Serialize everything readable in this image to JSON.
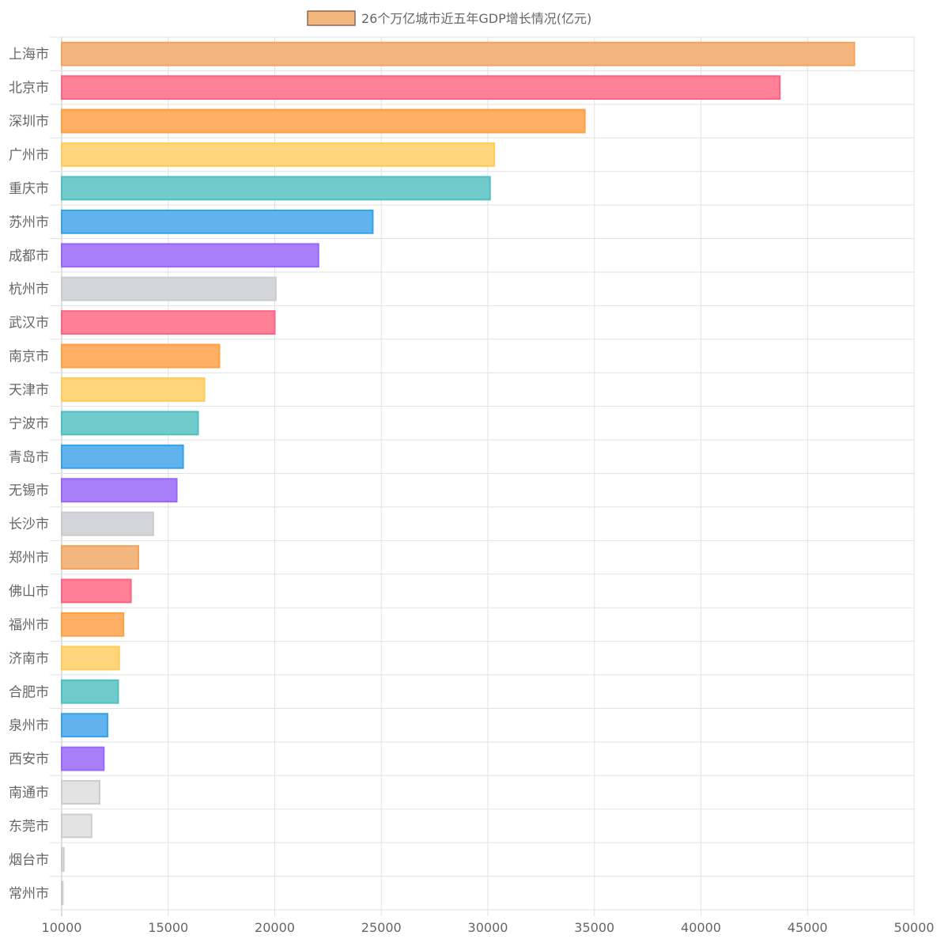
{
  "chart_data": {
    "type": "bar",
    "orientation": "horizontal",
    "legend": {
      "label": "26个万亿城市近五年GDP增长情况(亿元)",
      "position": "top-center",
      "color": "#f4b67f",
      "border_color": "#8a6a55"
    },
    "categories": [
      "上海市",
      "北京市",
      "深圳市",
      "广州市",
      "重庆市",
      "苏州市",
      "成都市",
      "杭州市",
      "武汉市",
      "南京市",
      "天津市",
      "宁波市",
      "青岛市",
      "无锡市",
      "长沙市",
      "郑州市",
      "佛山市",
      "福州市",
      "济南市",
      "合肥市",
      "泉州市",
      "西安市",
      "南通市",
      "东莞市",
      "烟台市",
      "常州市"
    ],
    "series": [
      {
        "name": "26个万亿城市近五年GDP增长情况(亿元)",
        "values": [
          47200,
          43700,
          34550,
          30300,
          30100,
          24600,
          22050,
          20050,
          20000,
          17400,
          16700,
          16400,
          15700,
          15400,
          14300,
          13600,
          13250,
          12900,
          12700,
          12650,
          12150,
          11980,
          11780,
          11400,
          10100,
          10050
        ]
      }
    ],
    "bar_colors": [
      "#f4b67f",
      "#ff8198",
      "#ffb064",
      "#fed57a",
      "#71cbcc",
      "#61b3ed",
      "#a97ff9",
      "#d4d5d8",
      "#ff8198",
      "#ffb064",
      "#fed57a",
      "#71cbcc",
      "#61b3ed",
      "#a97ff9",
      "#d4d5d8",
      "#f4b67f",
      "#ff8198",
      "#ffb064",
      "#fed57a",
      "#71cbcc",
      "#61b3ed",
      "#a97ff9",
      "#e3e3e3",
      "#e3e3e3",
      "#e3e3e3",
      "#e3e3e3"
    ],
    "bar_border_colors": [
      "#f2a35e",
      "#ff6384",
      "#ff9f40",
      "#ffcd56",
      "#4bc0c0",
      "#36a2eb",
      "#9966ff",
      "#c9cbcf",
      "#ff6384",
      "#ff9f40",
      "#ffcd56",
      "#4bc0c0",
      "#36a2eb",
      "#9966ff",
      "#c9cbcf",
      "#f2a35e",
      "#ff6384",
      "#ff9f40",
      "#ffcd56",
      "#4bc0c0",
      "#36a2eb",
      "#9966ff",
      "#cccccc",
      "#cccccc",
      "#cccccc",
      "#cccccc"
    ],
    "x_ticks": [
      "10000",
      "15000",
      "20000",
      "25000",
      "30000",
      "35000",
      "40000",
      "45000",
      "50000"
    ],
    "xlim": [
      10000,
      50000
    ],
    "xlabel": "",
    "ylabel": "",
    "grid": true
  }
}
